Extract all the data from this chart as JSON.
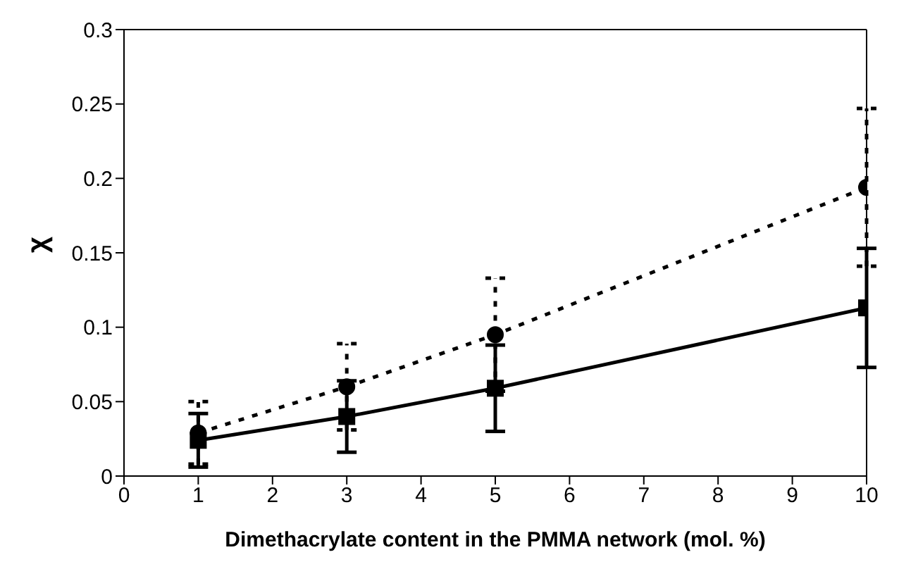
{
  "chart_data": {
    "type": "line",
    "xlabel": "Dimethacrylate content in the PMMA network (mol. %)",
    "ylabel": "χ",
    "x": [
      1,
      3,
      5,
      10
    ],
    "xlim": [
      0,
      10
    ],
    "xticks": [
      0,
      1,
      2,
      3,
      4,
      5,
      6,
      7,
      8,
      9,
      10
    ],
    "ylim": [
      0,
      0.3
    ],
    "yticks": [
      0,
      0.05,
      0.1,
      0.15,
      0.2,
      0.25,
      0.3
    ],
    "grid": false,
    "legend": false,
    "series": [
      {
        "color": "#000000",
        "marker": "circle",
        "line_style": "dotted",
        "values": [
          0.029,
          0.06,
          0.095,
          0.194
        ],
        "errors": [
          0.021,
          0.029,
          0.038,
          0.053
        ]
      },
      {
        "color": "#000000",
        "marker": "square",
        "line_style": "solid",
        "values": [
          0.024,
          0.04,
          0.059,
          0.113
        ],
        "errors": [
          0.018,
          0.024,
          0.029,
          0.04
        ]
      }
    ]
  }
}
